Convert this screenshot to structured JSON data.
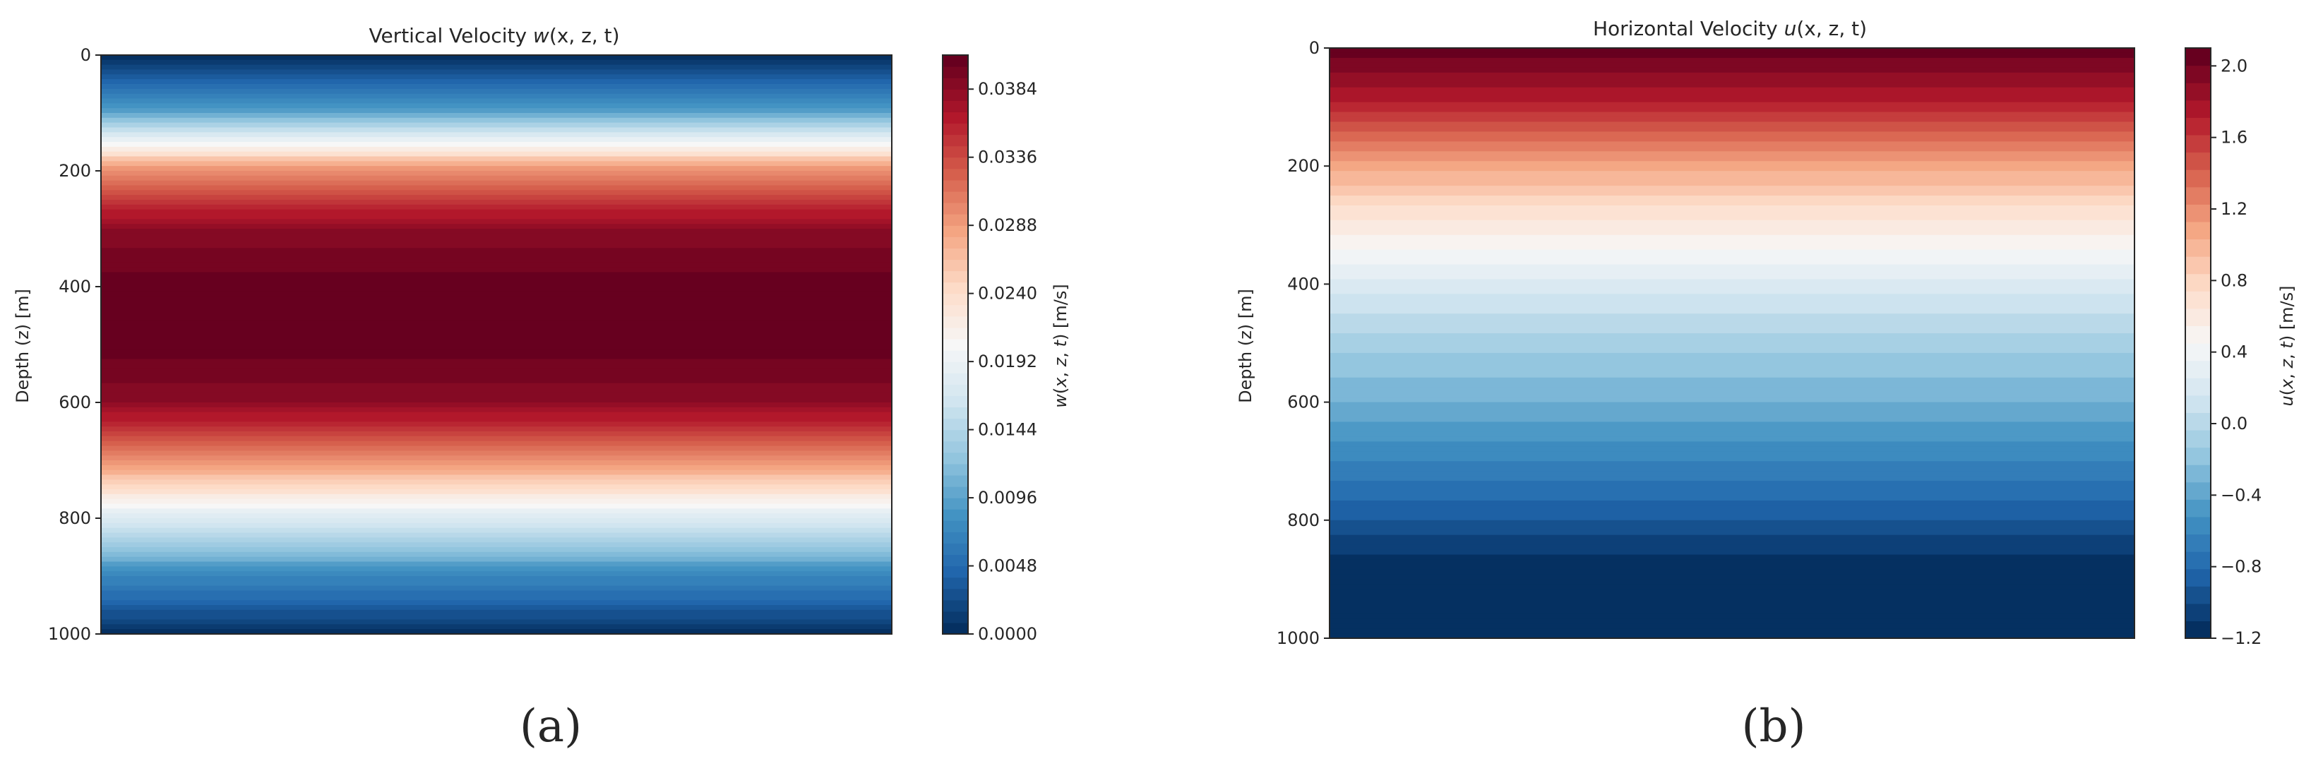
{
  "chart_data": [
    {
      "type": "heatmap",
      "title": "Vertical Velocity w(x, z, t)",
      "title_parts": {
        "prefix": "Vertical Velocity ",
        "symbol": "w",
        "args": "(x, z, t)"
      },
      "ylabel": "Depth (z) [m]",
      "xlabel": "",
      "yticks": [
        0,
        200,
        400,
        600,
        800,
        1000
      ],
      "ylim": [
        0,
        1000
      ],
      "y_inverted": true,
      "x_ticks_shown": false,
      "colorbar": {
        "label": "w(x, z, t) [m/s]",
        "range": [
          0.0,
          0.0408
        ],
        "ticks": [
          "0.0000",
          "0.0048",
          "0.0096",
          "0.0144",
          "0.0192",
          "0.0240",
          "0.0288",
          "0.0336",
          "0.0384"
        ],
        "tick_values": [
          0.0,
          0.0048,
          0.0096,
          0.0144,
          0.0192,
          0.024,
          0.0288,
          0.0336,
          0.0384
        ],
        "levels": 51,
        "colormap": "RdBu_r"
      },
      "profile": {
        "depth_m": [
          0,
          100,
          200,
          300,
          400,
          450,
          500,
          600,
          700,
          800,
          900,
          1000
        ],
        "value": [
          0.0,
          0.0096,
          0.03,
          0.039,
          0.0408,
          0.0408,
          0.0408,
          0.039,
          0.03,
          0.0176,
          0.0072,
          0.0
        ]
      },
      "panel_label": "(a)"
    },
    {
      "type": "heatmap",
      "title": "Horizontal Velocity u(x, z, t)",
      "title_parts": {
        "prefix": "Horizontal Velocity ",
        "symbol": "u",
        "args": "(x, z, t)"
      },
      "ylabel": "Depth (z) [m]",
      "xlabel": "",
      "yticks": [
        0,
        200,
        400,
        600,
        800,
        1000
      ],
      "ylim": [
        0,
        1000
      ],
      "y_inverted": true,
      "x_ticks_shown": false,
      "colorbar": {
        "label": "u(x, z, t) [m/s]",
        "range": [
          -1.2,
          2.1
        ],
        "ticks": [
          "−1.2",
          "−0.8",
          "−0.4",
          "0.0",
          "0.4",
          "0.8",
          "1.2",
          "1.6",
          "2.0"
        ],
        "tick_values": [
          -1.2,
          -0.8,
          -0.4,
          0.0,
          0.4,
          0.8,
          1.2,
          1.6,
          2.0
        ],
        "levels": 34,
        "colormap": "RdBu_r"
      },
      "profile": {
        "depth_m": [
          0,
          50,
          100,
          200,
          300,
          350,
          400,
          500,
          600,
          700,
          800,
          870,
          1000
        ],
        "value": [
          2.1,
          1.9,
          1.7,
          1.1,
          0.6,
          0.4,
          0.2,
          -0.1,
          -0.35,
          -0.65,
          -0.95,
          -1.2,
          -1.2
        ]
      },
      "panel_label": "(b)"
    }
  ],
  "colors": {
    "rdbu_stops": [
      "#053061",
      "#2166ac",
      "#4393c3",
      "#92c5de",
      "#d1e5f0",
      "#f7f7f7",
      "#fddbc7",
      "#f4a582",
      "#d6604d",
      "#b2182b",
      "#67001f"
    ],
    "axis": "#262626"
  }
}
